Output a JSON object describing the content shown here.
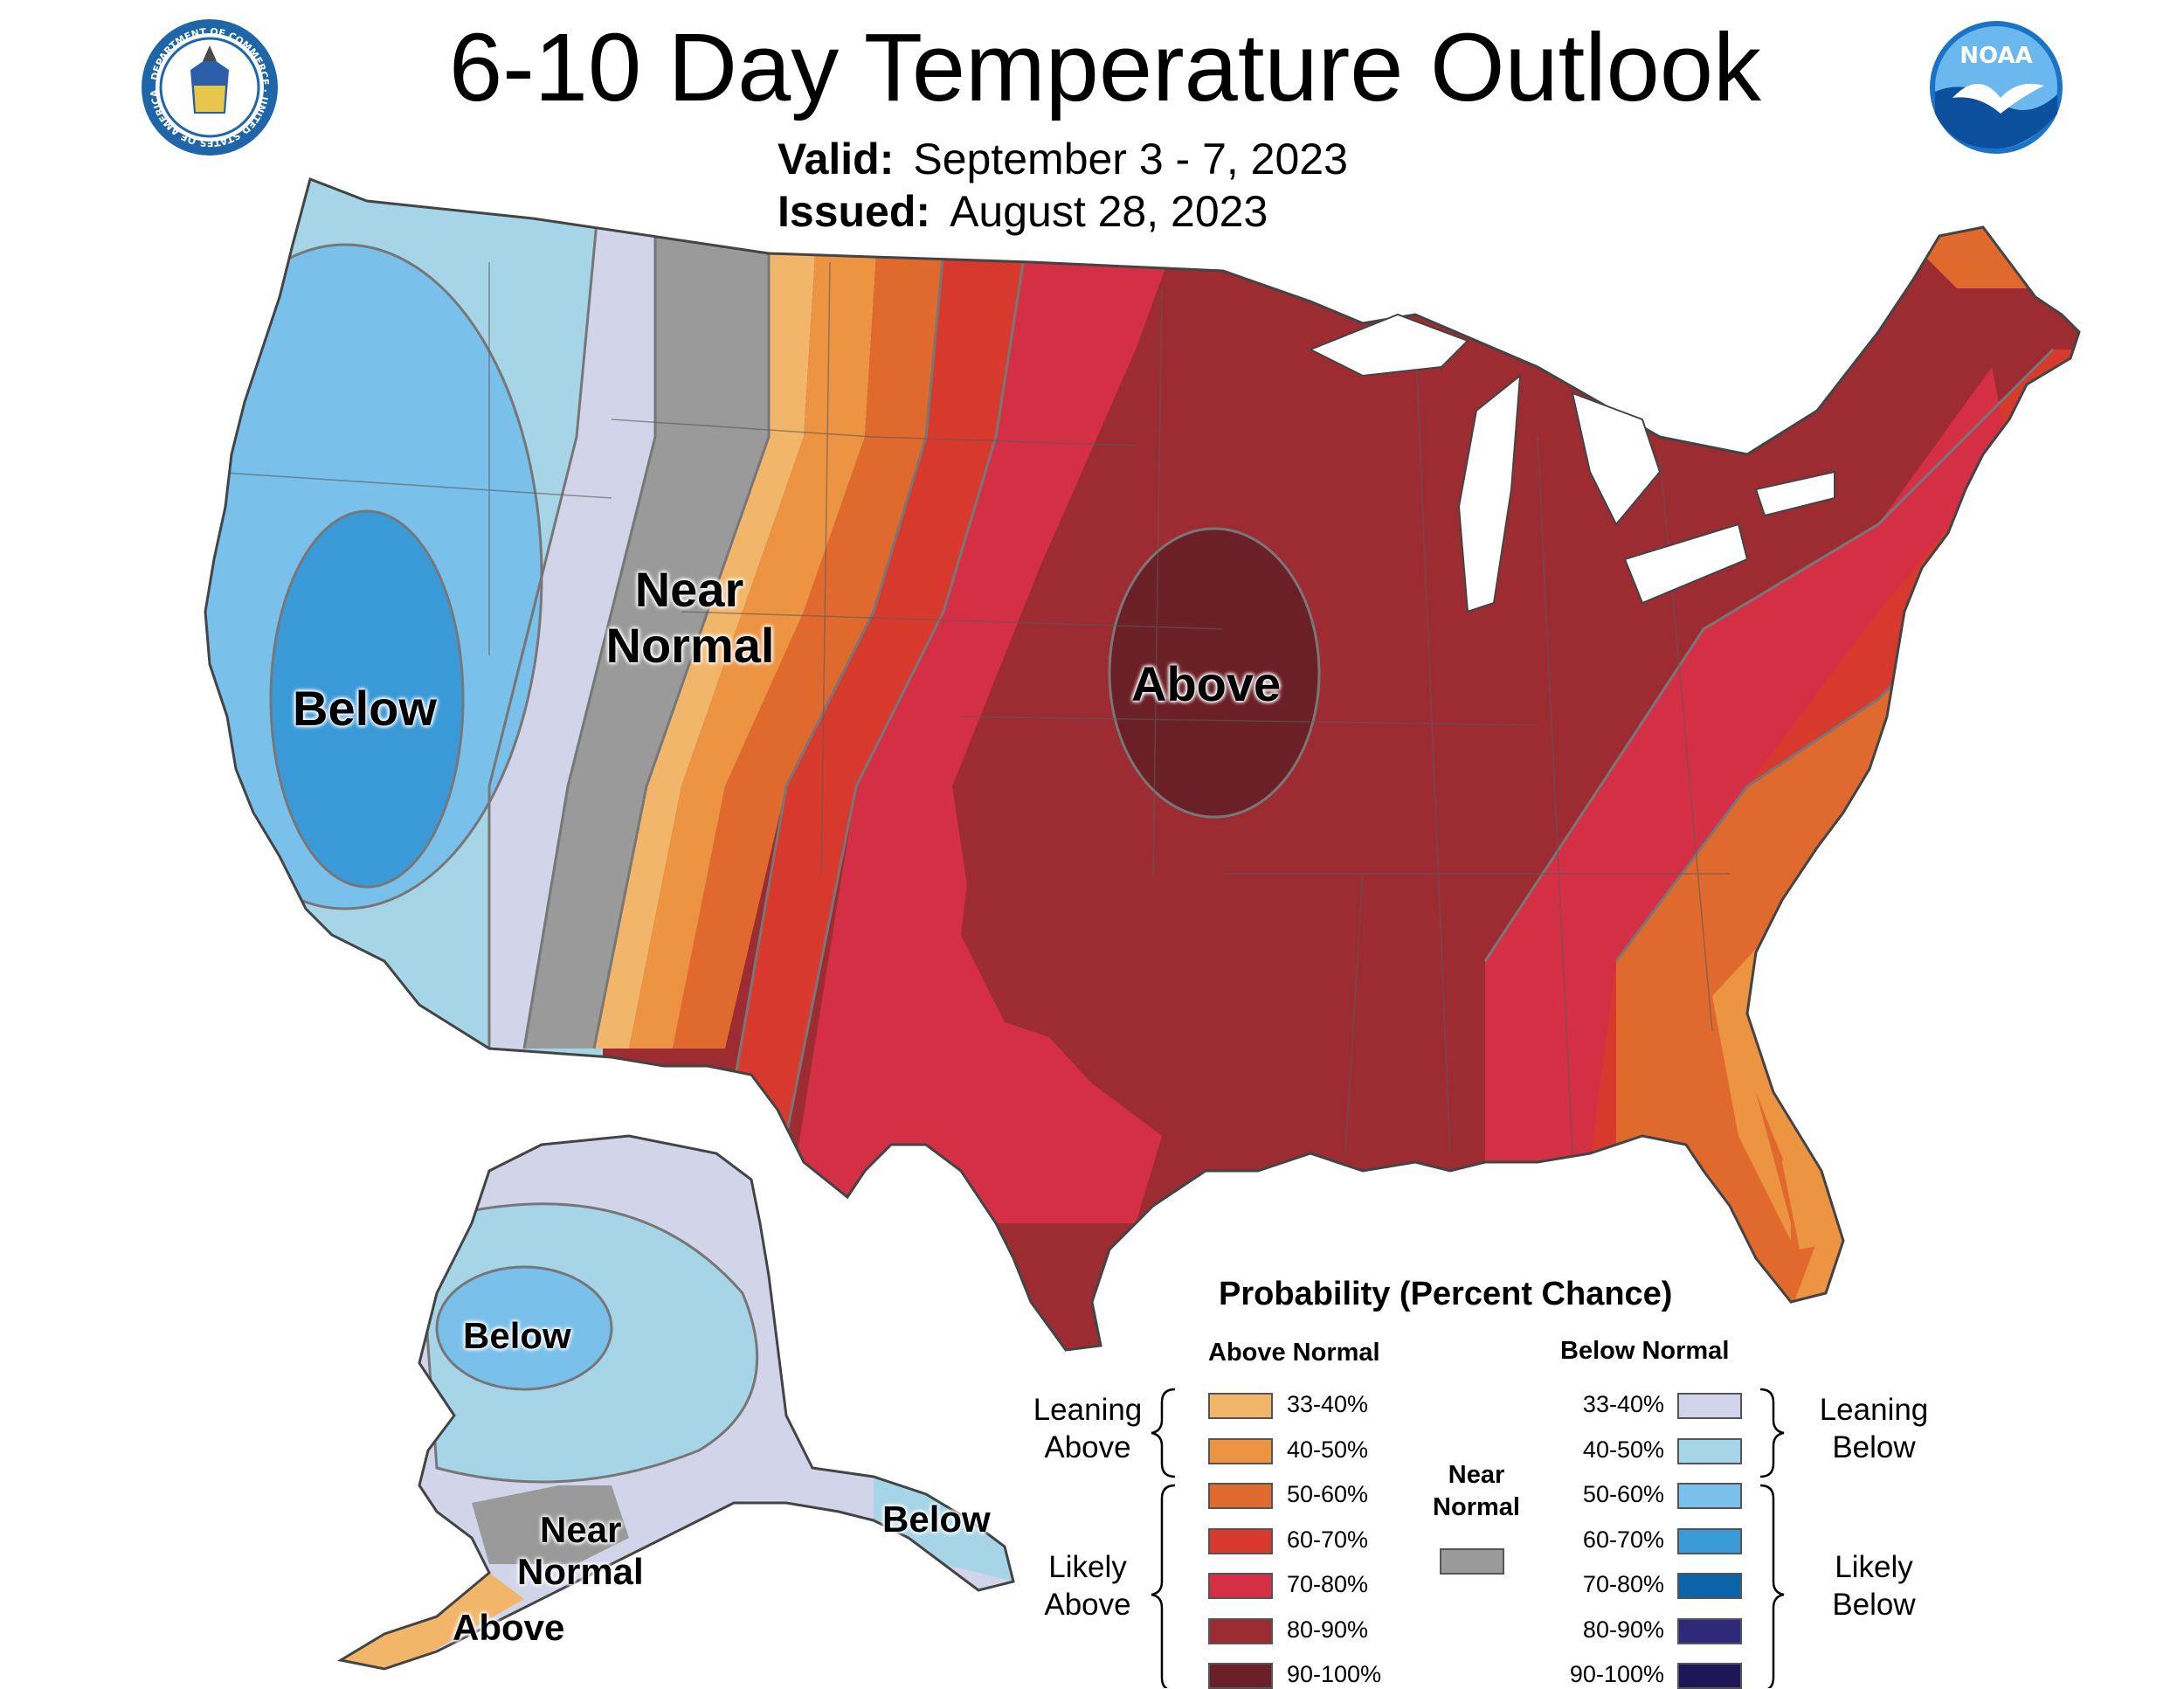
{
  "title": "6-10 Day Temperature Outlook",
  "valid": {
    "label": "Valid:",
    "value": "September 3 - 7, 2023"
  },
  "issued": {
    "label": "Issued:",
    "value": "August 28, 2023"
  },
  "logos": {
    "left": {
      "name": "department-of-commerce-seal",
      "text": "DEPARTMENT OF COMMERCE · UNITED STATES OF AMERICA"
    },
    "right": {
      "name": "noaa-logo",
      "text": "NOAA"
    }
  },
  "map_labels": {
    "conus_below": "Below",
    "conus_near_line1": "Near",
    "conus_near_line2": "Normal",
    "conus_above": "Above",
    "ak_below": "Below",
    "ak_near_line1": "Near",
    "ak_near_line2": "Normal",
    "ak_above": "Above",
    "ak_panhandle_below": "Below"
  },
  "legend": {
    "title": "Probability (Percent Chance)",
    "above_header": "Above Normal",
    "below_header": "Below Normal",
    "near_label_line1": "Near",
    "near_label_line2": "Normal",
    "near_color": "#9a9a9a",
    "leaning_above_line1": "Leaning",
    "leaning_above_line2": "Above",
    "likely_above_line1": "Likely",
    "likely_above_line2": "Above",
    "leaning_below_line1": "Leaning",
    "leaning_below_line2": "Below",
    "likely_below_line1": "Likely",
    "likely_below_line2": "Below",
    "above_rows": [
      {
        "range": "33-40%",
        "color": "#f2b66b"
      },
      {
        "range": "40-50%",
        "color": "#ec9442"
      },
      {
        "range": "50-60%",
        "color": "#e06a2e"
      },
      {
        "range": "60-70%",
        "color": "#d73a2c"
      },
      {
        "range": "70-80%",
        "color": "#d42f45"
      },
      {
        "range": "80-90%",
        "color": "#9b2c32"
      },
      {
        "range": "90-100%",
        "color": "#6b1f26"
      }
    ],
    "below_rows": [
      {
        "range": "33-40%",
        "color": "#d2d5ea"
      },
      {
        "range": "40-50%",
        "color": "#a5d5e6"
      },
      {
        "range": "50-60%",
        "color": "#79c0ea"
      },
      {
        "range": "60-70%",
        "color": "#3a9ad8"
      },
      {
        "range": "70-80%",
        "color": "#0b64a8"
      },
      {
        "range": "80-90%",
        "color": "#2e2a78"
      },
      {
        "range": "90-100%",
        "color": "#1e1657"
      }
    ]
  }
}
